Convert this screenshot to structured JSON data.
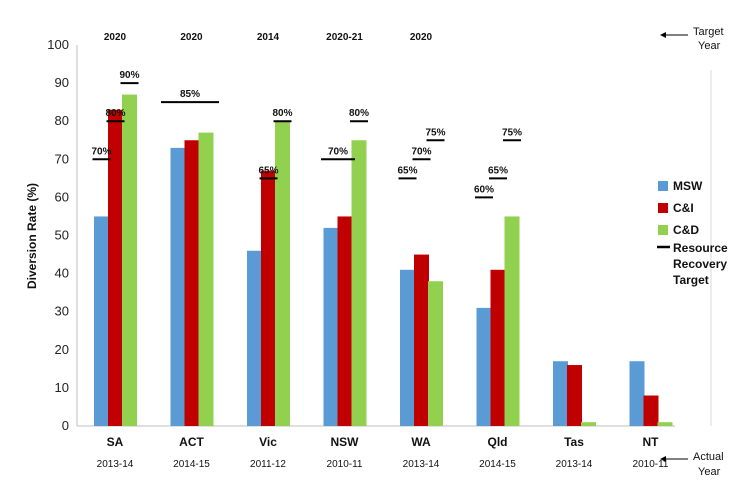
{
  "chart_data": {
    "type": "bar",
    "ylabel": "Diversion Rate (%)",
    "ylim": [
      0,
      100
    ],
    "yticks": [
      0,
      10,
      20,
      30,
      40,
      50,
      60,
      70,
      80,
      90,
      100
    ],
    "categories": [
      "SA",
      "ACT",
      "Vic",
      "NSW",
      "WA",
      "Qld",
      "Tas",
      "NT"
    ],
    "actual_years": [
      "2013-14",
      "2014-15",
      "2011-12",
      "2010-11",
      "2013-14",
      "2014-15",
      "2013-14",
      "2010-11"
    ],
    "target_years": [
      "2020",
      "2020",
      "2014",
      "2020-21",
      "2020",
      "",
      "",
      ""
    ],
    "series": [
      {
        "name": "MSW",
        "color": "#5b9bd5",
        "values": [
          55,
          73,
          46,
          52,
          41,
          31,
          17,
          17
        ]
      },
      {
        "name": "C&I",
        "color": "#c00000",
        "values": [
          83,
          75,
          67,
          55,
          45,
          41,
          16,
          8
        ]
      },
      {
        "name": "C&D",
        "color": "#92d050",
        "values": [
          87,
          77,
          80,
          75,
          38,
          55,
          1,
          1
        ]
      }
    ],
    "targets": [
      {
        "category": "SA",
        "series": "MSW",
        "value": 70,
        "label": "70%"
      },
      {
        "category": "SA",
        "series": "C&I",
        "value": 80,
        "label": "80%"
      },
      {
        "category": "SA",
        "series": "C&D",
        "value": 90,
        "label": "90%"
      },
      {
        "category": "ACT",
        "series": "all",
        "value": 85,
        "label": "85%"
      },
      {
        "category": "Vic",
        "series": "C&I",
        "value": 65,
        "label": "65%"
      },
      {
        "category": "Vic",
        "series": "C&D",
        "value": 80,
        "label": "80%"
      },
      {
        "category": "NSW",
        "series": "MSW+C&I",
        "value": 70,
        "label": "70%"
      },
      {
        "category": "NSW",
        "series": "C&D",
        "value": 80,
        "label": "80%"
      },
      {
        "category": "WA",
        "series": "MSW",
        "value": 65,
        "label": "65%"
      },
      {
        "category": "WA",
        "series": "C&I",
        "value": 70,
        "label": "70%"
      },
      {
        "category": "WA",
        "series": "C&D",
        "value": 75,
        "label": "75%"
      },
      {
        "category": "Qld",
        "series": "MSW",
        "value": 60,
        "label": "60%"
      },
      {
        "category": "Qld",
        "series": "C&I",
        "value": 65,
        "label": "65%"
      },
      {
        "category": "Qld",
        "series": "C&D",
        "value": 75,
        "label": "75%"
      }
    ],
    "legend": {
      "position": "right",
      "items": [
        "MSW",
        "C&I",
        "C&D"
      ],
      "target_marker_label": [
        "Resource",
        "Recovery",
        "Target"
      ]
    },
    "side_labels": {
      "target_year": [
        "Target",
        "Year"
      ],
      "actual_year": [
        "Actual",
        "Year"
      ]
    },
    "grid": false
  }
}
